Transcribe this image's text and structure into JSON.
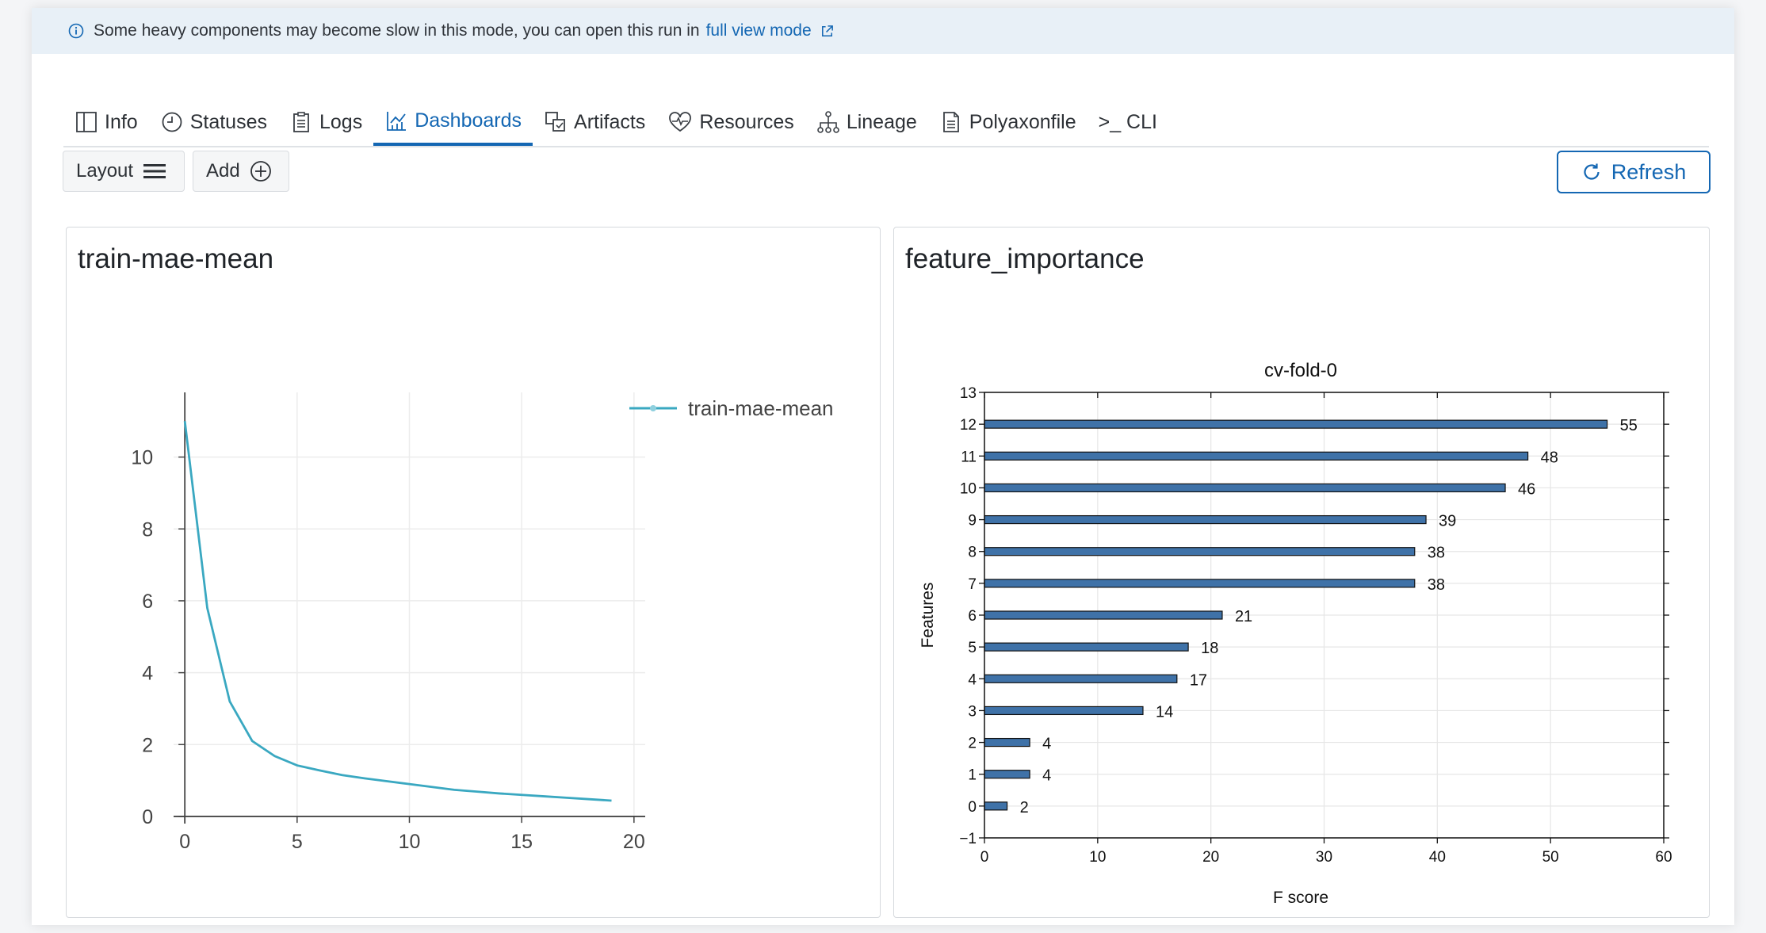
{
  "banner": {
    "text": "Some heavy components may become slow in this mode, you can open this run in",
    "link": "full view mode"
  },
  "tabs": [
    {
      "label": "Info",
      "icon": "columns-icon"
    },
    {
      "label": "Statuses",
      "icon": "clock-icon"
    },
    {
      "label": "Logs",
      "icon": "clipboard-icon"
    },
    {
      "label": "Dashboards",
      "icon": "chart-icon"
    },
    {
      "label": "Artifacts",
      "icon": "artifacts-icon"
    },
    {
      "label": "Resources",
      "icon": "heart-pulse-icon"
    },
    {
      "label": "Lineage",
      "icon": "lineage-icon"
    },
    {
      "label": "Polyaxonfile",
      "icon": "file-icon"
    },
    {
      "label": ">_ CLI",
      "icon": "terminal-icon"
    }
  ],
  "active_tab": "Dashboards",
  "toolbar": {
    "layout_label": "Layout",
    "add_label": "Add",
    "refresh_label": "Refresh"
  },
  "colors": {
    "accent": "#1467b3",
    "line_series": "#3aa8c1",
    "bar_fill": "#3f72a8",
    "banner_bg": "#e8f0f7"
  },
  "panels": {
    "left_title": "train-mae-mean",
    "right_title": "feature_importance"
  },
  "chart_data": [
    {
      "type": "line",
      "title": "",
      "xlabel": "",
      "ylabel": "",
      "series": [
        {
          "name": "train-mae-mean",
          "x": [
            0,
            1,
            2,
            3,
            4,
            5,
            6,
            7,
            8,
            9,
            10,
            11,
            12,
            13,
            14,
            15,
            16,
            17,
            18,
            19
          ],
          "values": [
            11.0,
            5.8,
            3.2,
            2.1,
            1.68,
            1.42,
            1.28,
            1.15,
            1.06,
            0.98,
            0.9,
            0.82,
            0.74,
            0.69,
            0.64,
            0.6,
            0.56,
            0.52,
            0.48,
            0.44
          ]
        }
      ],
      "xlim": [
        -0.5,
        20.5
      ],
      "ylim": [
        -0.2,
        11.8
      ],
      "xticks": [
        0,
        5,
        10,
        15,
        20
      ],
      "yticks": [
        0,
        2,
        4,
        6,
        8,
        10
      ],
      "grid": true,
      "legend": "top-right"
    },
    {
      "type": "bar",
      "orientation": "horizontal",
      "title": "cv-fold-0",
      "xlabel": "F score",
      "ylabel": "Features",
      "categories": [
        0,
        1,
        2,
        3,
        4,
        5,
        6,
        7,
        8,
        9,
        10,
        11,
        12
      ],
      "values": [
        2,
        4,
        4,
        14,
        17,
        18,
        21,
        38,
        38,
        39,
        46,
        48,
        55
      ],
      "xlim": [
        0,
        60
      ],
      "ylim": [
        -1,
        13
      ],
      "xticks": [
        0,
        10,
        20,
        30,
        40,
        50,
        60
      ],
      "yticks": [
        -1,
        0,
        1,
        2,
        3,
        4,
        5,
        6,
        7,
        8,
        9,
        10,
        11,
        12,
        13
      ],
      "grid": true
    }
  ]
}
